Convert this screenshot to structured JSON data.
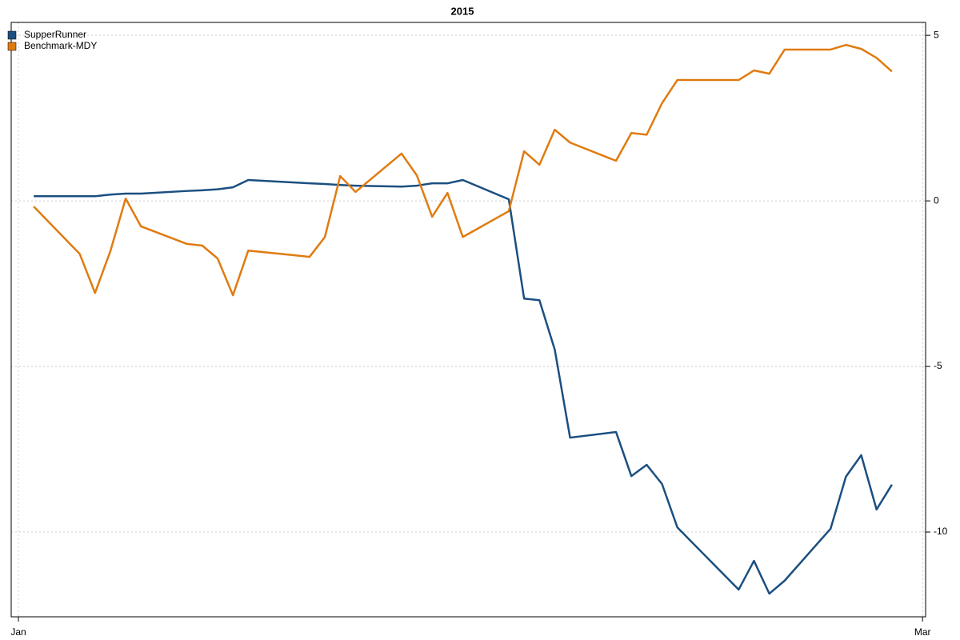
{
  "chart_data": {
    "type": "line",
    "title": "2015",
    "x": [
      1,
      4,
      5,
      6,
      7,
      8,
      11,
      12,
      13,
      14,
      15,
      19,
      20,
      21,
      22,
      25,
      26,
      27,
      28,
      29,
      32,
      33,
      34,
      35,
      36,
      39,
      40,
      41,
      42,
      43,
      47,
      48,
      49,
      50,
      53,
      54,
      55,
      56,
      57
    ],
    "series": [
      {
        "name": "SupperRunner",
        "color": "#1b4f80",
        "values": [
          0.14,
          0.14,
          0.14,
          0.19,
          0.22,
          0.22,
          0.3,
          0.32,
          0.35,
          0.41,
          0.63,
          0.53,
          0.51,
          0.48,
          0.46,
          0.43,
          0.46,
          0.53,
          0.53,
          0.63,
          0.05,
          -2.95,
          -3.0,
          -4.49,
          -7.15,
          -6.98,
          -8.31,
          -7.97,
          -8.55,
          -9.86,
          -11.74,
          -10.87,
          -11.86,
          -11.47,
          -9.9,
          -8.33,
          -7.68,
          -9.32,
          -8.57
        ]
      },
      {
        "name": "Benchmark-MDY",
        "color": "#e07b10",
        "values": [
          -0.17,
          -1.6,
          -2.78,
          -1.52,
          0.07,
          -0.77,
          -1.3,
          -1.35,
          -1.74,
          -2.85,
          -1.5,
          -1.69,
          -1.09,
          0.75,
          0.27,
          1.43,
          0.77,
          -0.48,
          0.24,
          -1.09,
          -0.31,
          1.5,
          1.09,
          2.15,
          1.76,
          1.21,
          2.05,
          2.0,
          2.95,
          3.65,
          3.65,
          3.94,
          3.84,
          4.57,
          4.57,
          4.71,
          4.59,
          4.32,
          3.91
        ]
      }
    ],
    "xlim": [
      -0.47,
      59.2
    ],
    "xticks": [
      {
        "value": 0,
        "label": "Jan"
      },
      {
        "value": 59,
        "label": "Mar"
      }
    ],
    "ylim": [
      -12.56,
      5.39
    ],
    "yticks": [
      5,
      0,
      -5,
      -10
    ],
    "grid": true,
    "legend": "top-left"
  }
}
